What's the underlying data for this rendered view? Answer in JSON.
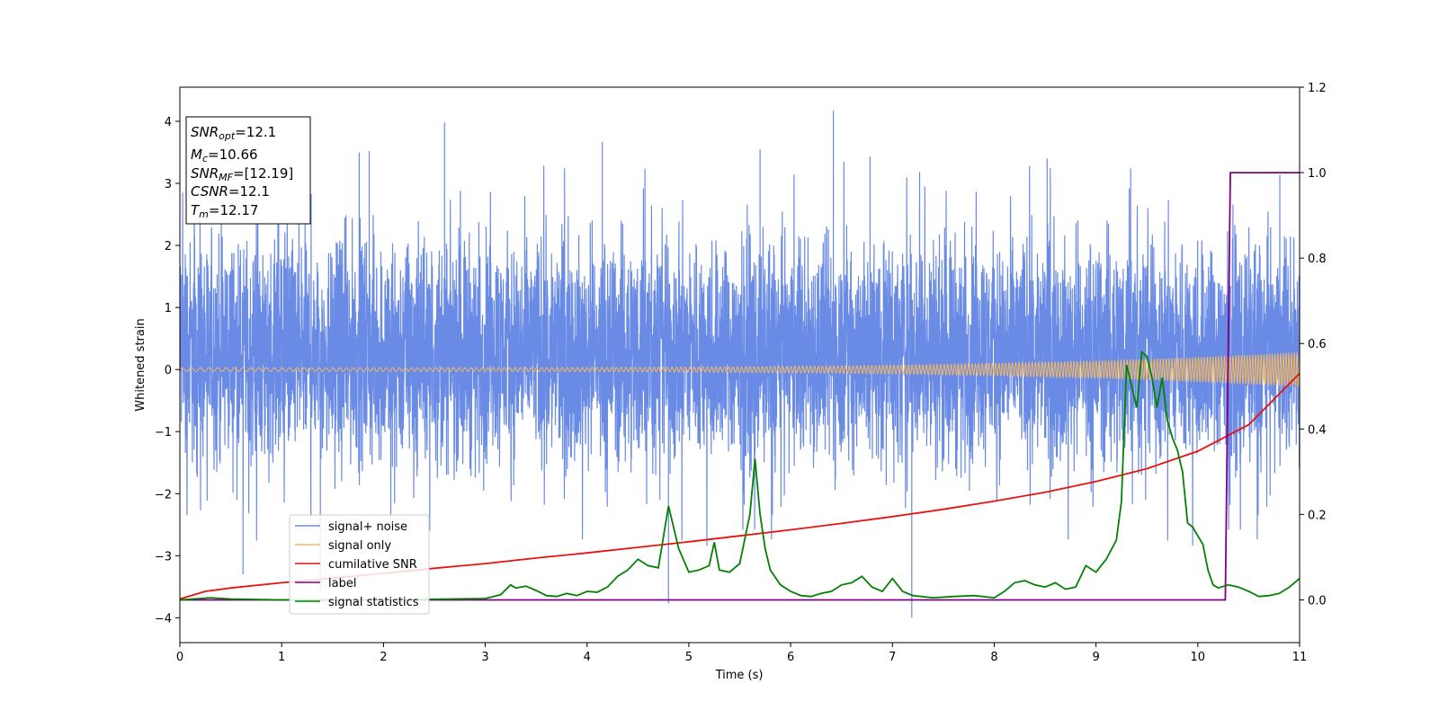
{
  "chart_data": {
    "type": "line",
    "title": "",
    "xlabel": "Time (s)",
    "ylabel": "Whitened strain",
    "y2label": "",
    "xlim": [
      0,
      11
    ],
    "ylim": [
      -4.4,
      4.55
    ],
    "y2lim": [
      -0.1,
      1.2
    ],
    "x_ticks": [
      "0",
      "1",
      "2",
      "3",
      "4",
      "5",
      "6",
      "7",
      "8",
      "9",
      "10",
      "11"
    ],
    "y_ticks": [
      "−4",
      "−3",
      "−2",
      "−1",
      "0",
      "1",
      "2",
      "3",
      "4"
    ],
    "y2_ticks": [
      "0.0",
      "0.2",
      "0.4",
      "0.6",
      "0.8",
      "1.0",
      "1.2"
    ],
    "grid": false,
    "legend_position": "lower-left",
    "info_box": {
      "lines": [
        {
          "sym": "SNR",
          "sub": "opt",
          "val": "=12.1"
        },
        {
          "sym": "M",
          "sub": "c",
          "val": "=10.66"
        },
        {
          "sym": "SNR",
          "sub": "MF",
          "val": "=[12.19]"
        },
        {
          "sym": "CSNR",
          "sub": "",
          "val": "=12.1"
        },
        {
          "sym": "T",
          "sub": "m",
          "val": "=12.17"
        }
      ]
    },
    "series": [
      {
        "name": "signal+ noise",
        "color": "#6a8be5",
        "axis": "left",
        "render": "noise",
        "typical_range": [
          -2.0,
          2.6
        ],
        "peaks": [
          [
            2.6,
            3.98
          ],
          [
            6.42,
            4.17
          ],
          [
            4.15,
            3.67
          ],
          [
            1.86,
            3.52
          ],
          [
            4.8,
            -3.77
          ],
          [
            7.19,
            -4.0
          ],
          [
            6.78,
            3.43
          ],
          [
            0.62,
            -3.3
          ],
          [
            1.38,
            -3.6
          ],
          [
            5.7,
            3.55
          ],
          [
            8.52,
            3.4
          ]
        ]
      },
      {
        "name": "signal only",
        "color": "#f5b862",
        "axis": "left",
        "render": "chirp",
        "amplitude_start": 0.03,
        "amplitude_end": 0.28
      },
      {
        "name": "cumilative SNR",
        "color": "#e8120e",
        "axis": "right",
        "x": [
          0,
          0.25,
          0.5,
          1,
          1.5,
          2,
          2.5,
          3,
          3.5,
          4,
          4.5,
          5,
          5.5,
          6,
          6.5,
          7,
          7.5,
          8,
          8.5,
          9,
          9.5,
          10,
          10.5,
          11
        ],
        "y": [
          0.002,
          0.02,
          0.028,
          0.04,
          0.051,
          0.062,
          0.074,
          0.085,
          0.098,
          0.11,
          0.123,
          0.136,
          0.15,
          0.164,
          0.179,
          0.195,
          0.212,
          0.231,
          0.252,
          0.277,
          0.307,
          0.348,
          0.41,
          0.53
        ]
      },
      {
        "name": "label",
        "color": "#800080",
        "axis": "right",
        "x": [
          0,
          10.27,
          10.32,
          11
        ],
        "y": [
          0,
          0,
          1,
          1
        ]
      },
      {
        "name": "signal statistics",
        "color": "#048004",
        "axis": "right",
        "x": [
          0,
          0.3,
          0.5,
          1,
          2,
          3,
          3.15,
          3.25,
          3.3,
          3.4,
          3.5,
          3.6,
          3.7,
          3.8,
          3.9,
          4.0,
          4.1,
          4.2,
          4.3,
          4.4,
          4.5,
          4.6,
          4.7,
          4.8,
          4.9,
          5.0,
          5.1,
          5.2,
          5.25,
          5.3,
          5.4,
          5.5,
          5.6,
          5.65,
          5.7,
          5.75,
          5.8,
          5.9,
          6.0,
          6.1,
          6.2,
          6.3,
          6.4,
          6.5,
          6.6,
          6.7,
          6.8,
          6.9,
          7.0,
          7.1,
          7.2,
          7.4,
          7.6,
          7.8,
          8.0,
          8.1,
          8.2,
          8.3,
          8.4,
          8.5,
          8.6,
          8.7,
          8.8,
          8.9,
          9.0,
          9.1,
          9.2,
          9.25,
          9.3,
          9.35,
          9.4,
          9.45,
          9.5,
          9.55,
          9.6,
          9.65,
          9.7,
          9.75,
          9.8,
          9.85,
          9.9,
          9.95,
          10.0,
          10.05,
          10.1,
          10.15,
          10.2,
          10.3,
          10.4,
          10.5,
          10.6,
          10.7,
          10.8,
          10.9,
          11.0
        ],
        "y": [
          0.0,
          0.005,
          0.002,
          0.0,
          0.0,
          0.003,
          0.012,
          0.035,
          0.028,
          0.032,
          0.022,
          0.01,
          0.008,
          0.015,
          0.01,
          0.02,
          0.018,
          0.03,
          0.055,
          0.07,
          0.095,
          0.08,
          0.075,
          0.22,
          0.12,
          0.065,
          0.07,
          0.08,
          0.135,
          0.07,
          0.065,
          0.085,
          0.2,
          0.33,
          0.2,
          0.12,
          0.07,
          0.035,
          0.02,
          0.01,
          0.008,
          0.015,
          0.02,
          0.035,
          0.04,
          0.055,
          0.03,
          0.02,
          0.05,
          0.02,
          0.01,
          0.005,
          0.008,
          0.01,
          0.005,
          0.02,
          0.04,
          0.045,
          0.035,
          0.03,
          0.04,
          0.025,
          0.03,
          0.08,
          0.065,
          0.095,
          0.14,
          0.23,
          0.55,
          0.5,
          0.45,
          0.58,
          0.57,
          0.52,
          0.45,
          0.52,
          0.42,
          0.38,
          0.35,
          0.3,
          0.18,
          0.17,
          0.15,
          0.13,
          0.07,
          0.035,
          0.028,
          0.035,
          0.03,
          0.02,
          0.008,
          0.01,
          0.015,
          0.03,
          0.05
        ]
      }
    ]
  }
}
